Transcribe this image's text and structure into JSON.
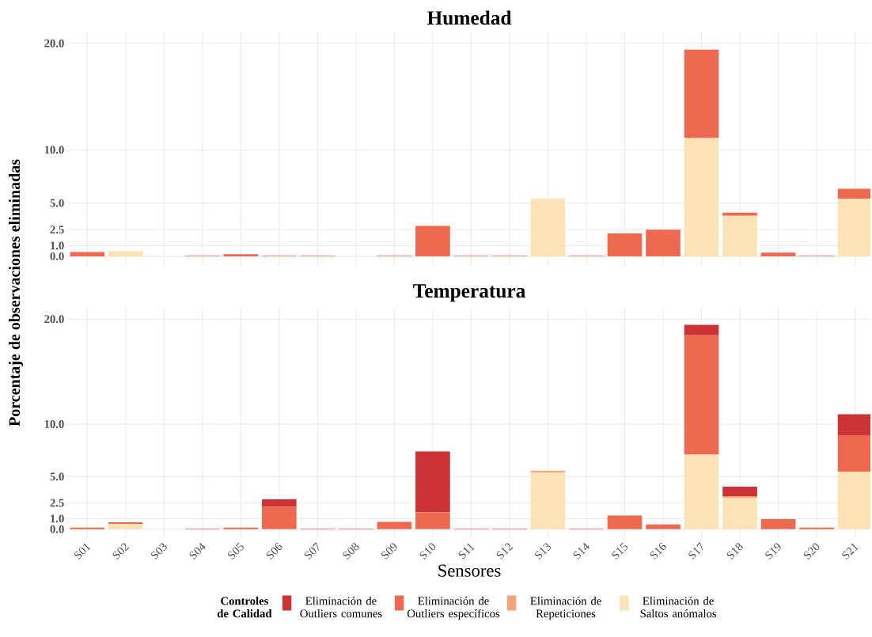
{
  "chart_data": [
    {
      "type": "bar",
      "title": "Humedad",
      "ylabel": "Porcentaje de observaciones eliminadas",
      "stacked": true,
      "grid": true,
      "tick_labels": "y",
      "categories": [
        null,
        null,
        null,
        null,
        null,
        null,
        null,
        null,
        null,
        null,
        null,
        null,
        null,
        null,
        null,
        null,
        null,
        null,
        null,
        null,
        null
      ],
      "ylim": [
        -0.9,
        21.1
      ],
      "yticks": [
        {
          "value": 0,
          "label": "0.0"
        },
        {
          "value": 1,
          "label": "1.0"
        },
        {
          "value": 2.5,
          "label": "2.5"
        },
        {
          "value": 5,
          "label": "5.0"
        },
        {
          "value": 10,
          "label": "10.0"
        },
        {
          "value": 20,
          "label": "20.0"
        }
      ],
      "series": [
        {
          "color": "#fde2b5",
          "values": [
            0,
            0.5,
            0,
            0,
            0,
            0,
            0,
            0,
            0,
            0,
            0,
            0,
            5.4,
            0,
            0,
            0,
            11.1,
            3.8,
            0,
            0,
            5.4
          ]
        },
        {
          "color": "#fca07a",
          "values": [
            0,
            0,
            0,
            0,
            0,
            0,
            0,
            0,
            0,
            0,
            0,
            0,
            null,
            0,
            0,
            0,
            0,
            0,
            0,
            0,
            0
          ]
        },
        {
          "color": "#ed6a50",
          "values": [
            0.4,
            0,
            0,
            0.05,
            0.2,
            0.05,
            0.05,
            0,
            0.05,
            2.85,
            0.05,
            0.05,
            0,
            0.05,
            2.15,
            2.5,
            8.3,
            0.3,
            0.35,
            0.05,
            0.95
          ]
        },
        {
          "color": "#cb3335",
          "values": [
            0,
            0,
            0,
            0,
            0,
            0,
            0,
            0,
            0,
            0,
            0,
            0,
            0,
            0,
            0,
            0,
            0,
            0,
            0,
            0,
            0
          ]
        }
      ]
    },
    {
      "type": "bar",
      "title": "Temperatura",
      "xlabel": "Sensores",
      "legend_title": "Controles de Calidad",
      "legend": "bottom",
      "stacked": true,
      "grid": true,
      "categories": [
        "S01",
        "S02",
        "S03",
        "S04",
        "S05",
        "S06",
        "S07",
        "S08",
        "S09",
        "S10",
        "S11",
        "S12",
        "S13",
        "S14",
        "S15",
        "S16",
        "S17",
        "S18",
        "S19",
        "S20",
        "S21"
      ],
      "ylim": [
        -0.85,
        21.0
      ],
      "yticks": [
        {
          "value": 0,
          "label": "0.0"
        },
        {
          "value": 1,
          "label": "1.0"
        },
        {
          "value": 2.5,
          "label": "2.5"
        },
        {
          "value": 5,
          "label": "5.0"
        },
        {
          "value": 10,
          "label": "10.0"
        },
        {
          "value": 20,
          "label": "20.0"
        }
      ],
      "series": [
        {
          "name": "Eliminación de Saltos anómalos",
          "color": "#fde2b5",
          "values": [
            0,
            0.5,
            0,
            0,
            0,
            0,
            0,
            0,
            0,
            0,
            0,
            0,
            5.4,
            0,
            0,
            0,
            7.1,
            2.95,
            0,
            0,
            5.45
          ]
        },
        {
          "name": "Eliminación de Repeticiones",
          "color": "#fca07a",
          "values": [
            0,
            0,
            0,
            0,
            0,
            0,
            0,
            0,
            0,
            0,
            0,
            0,
            0.15,
            0,
            0,
            0,
            0,
            0.2,
            0,
            0,
            0
          ]
        },
        {
          "name": "Eliminación de Outliers específicos",
          "color": "#ed6a50",
          "values": [
            0.15,
            0.15,
            0,
            0.05,
            0.15,
            2.15,
            0.05,
            0.05,
            0.7,
            1.6,
            0.05,
            0.05,
            0,
            0.05,
            1.3,
            0.45,
            11.35,
            0,
            0.95,
            0.15,
            3.5
          ]
        },
        {
          "name": "Eliminación de Outliers comunes",
          "color": "#cb3335",
          "values": [
            0,
            0,
            0,
            0,
            0,
            0.7,
            0,
            0,
            0,
            5.8,
            0,
            0,
            0,
            0,
            0,
            0,
            1.0,
            0.9,
            0,
            0,
            2.0
          ]
        }
      ]
    }
  ]
}
